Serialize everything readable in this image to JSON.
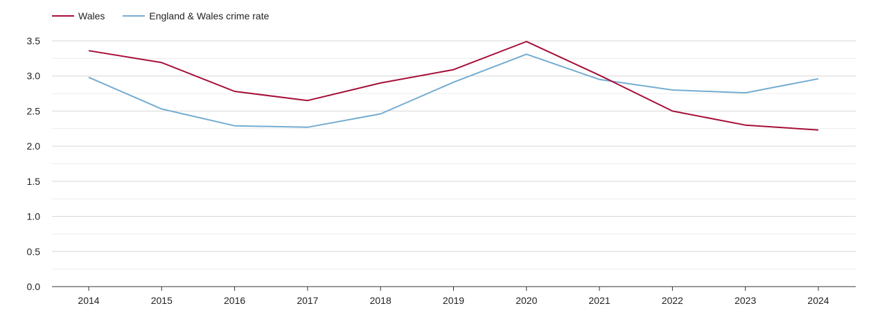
{
  "chart_data": {
    "type": "line",
    "title": "",
    "xlabel": "",
    "ylabel": "",
    "categories": [
      "2014",
      "2015",
      "2016",
      "2017",
      "2018",
      "2019",
      "2020",
      "2021",
      "2022",
      "2023",
      "2024"
    ],
    "ylim": [
      0,
      3.5
    ],
    "yticks": [
      "0.0",
      "0.5",
      "1.0",
      "1.5",
      "2.0",
      "2.5",
      "3.0",
      "3.5"
    ],
    "grid": true,
    "legend_position": "top-left",
    "series": [
      {
        "name": "Wales",
        "color": "#a50f37",
        "values": [
          3.36,
          3.19,
          2.78,
          2.65,
          2.9,
          3.09,
          3.49,
          3.01,
          2.5,
          2.3,
          2.23
        ]
      },
      {
        "name": "England & Wales crime rate",
        "color": "#74acd1",
        "values": [
          2.98,
          2.53,
          2.29,
          2.27,
          2.46,
          2.91,
          3.31,
          2.95,
          2.8,
          2.76,
          2.96
        ]
      }
    ]
  }
}
